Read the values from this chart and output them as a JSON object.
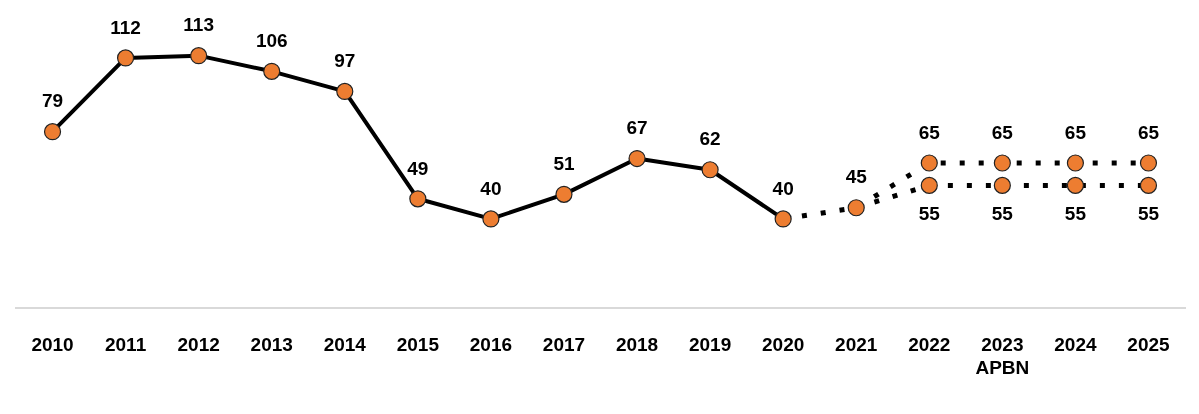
{
  "chart_data": {
    "type": "line",
    "categories": [
      "2010",
      "2011",
      "2012",
      "2013",
      "2014",
      "2015",
      "2016",
      "2017",
      "2018",
      "2019",
      "2020",
      "2021",
      "2022",
      "2023\nAPBN",
      "2024",
      "2025"
    ],
    "tick_labels": "x",
    "grid": false,
    "legend": false,
    "marker": "circle",
    "series": [
      {
        "color": "#ed7d31",
        "line_style": "solid",
        "values": [
          79,
          112,
          113,
          106,
          97,
          49,
          40,
          51,
          67,
          62,
          40,
          null,
          null,
          null,
          null,
          null
        ],
        "value_labels": [
          "79",
          "112",
          "113",
          "106",
          "97",
          "49",
          "40",
          "51",
          "67",
          "62",
          "40",
          null,
          null,
          null,
          null,
          null
        ]
      },
      {
        "color": "#ed7d31",
        "line_style": "dotted",
        "values": [
          null,
          null,
          null,
          null,
          null,
          null,
          null,
          null,
          null,
          null,
          40,
          45,
          65,
          65,
          65,
          65
        ],
        "value_labels": [
          null,
          null,
          null,
          null,
          null,
          null,
          null,
          null,
          null,
          null,
          null,
          "45",
          "65",
          "65",
          "65",
          "65"
        ]
      },
      {
        "color": "#ed7d31",
        "line_style": "dotted",
        "values": [
          null,
          null,
          null,
          null,
          null,
          null,
          null,
          null,
          null,
          null,
          null,
          45,
          55,
          55,
          55,
          55
        ],
        "value_labels": [
          null,
          null,
          null,
          null,
          null,
          null,
          null,
          null,
          null,
          null,
          null,
          null,
          "55",
          "55",
          "55",
          "55"
        ]
      }
    ]
  }
}
